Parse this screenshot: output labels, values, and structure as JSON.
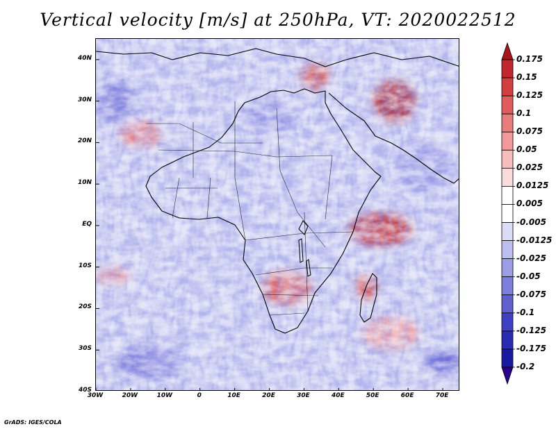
{
  "title": "Vertical velocity [m/s] at 250hPa, VT: 2020022512",
  "credit": "GrADS: IGES/COLA",
  "lat_labels": [
    "40N",
    "30N",
    "20N",
    "10N",
    "EQ",
    "10S",
    "20S",
    "30S",
    "40S"
  ],
  "lon_labels": [
    "30W",
    "20W",
    "10W",
    "0",
    "10E",
    "20E",
    "30E",
    "40E",
    "50E",
    "60E",
    "70E"
  ],
  "colorbar": {
    "labels": [
      "0.175",
      "0.15",
      "0.125",
      "0.1",
      "0.075",
      "0.05",
      "0.025",
      "0.0125",
      "0.005",
      "-0.005",
      "-0.0125",
      "-0.025",
      "-0.05",
      "-0.075",
      "-0.1",
      "-0.125",
      "-0.175",
      "-0.2"
    ],
    "colors": [
      "#a8141c",
      "#c1272d",
      "#d33f3f",
      "#e05c5c",
      "#ea7b7b",
      "#f29a9a",
      "#f7bcbc",
      "#fbdcdc",
      "#ffffff",
      "#ffffff",
      "#dcdcf6",
      "#bdbdf0",
      "#9d9de6",
      "#7e7edc",
      "#5f5fd0",
      "#4040c4",
      "#2a2ab2",
      "#1a1aa0",
      "#2a008f"
    ]
  },
  "map": {
    "extent": {
      "lon_min": -30,
      "lon_max": 75,
      "lat_min": -40,
      "lat_max": 45
    },
    "features": [
      {
        "name": "red-patch-east-africa-indian-ocean",
        "lon": 52,
        "lat": -1,
        "rx": 9,
        "ry": 4,
        "color": "#c1272d"
      },
      {
        "name": "red-patch-iran",
        "lon": 56,
        "lat": 30,
        "rx": 6,
        "ry": 5,
        "color": "#b01c24"
      },
      {
        "name": "red-patch-madagascar",
        "lon": 48,
        "lat": -15,
        "rx": 3,
        "ry": 3,
        "color": "#d33f3f"
      },
      {
        "name": "red-patch-southern-africa",
        "lon": 25,
        "lat": -15,
        "rx": 7,
        "ry": 4,
        "color": "#e05c5c"
      },
      {
        "name": "red-patch-east-mediterranean",
        "lon": 33,
        "lat": 36,
        "rx": 4,
        "ry": 3,
        "color": "#d33f3f"
      },
      {
        "name": "red-patch-sahara-west",
        "lon": -17,
        "lat": 22,
        "rx": 6,
        "ry": 3,
        "color": "#ea7b7b"
      },
      {
        "name": "red-patch-south-atlantic",
        "lon": -25,
        "lat": -12,
        "rx": 5,
        "ry": 2,
        "color": "#f29a9a"
      },
      {
        "name": "red-patch-south-indian",
        "lon": 55,
        "lat": -26,
        "rx": 8,
        "ry": 4,
        "color": "#f29a9a"
      },
      {
        "name": "blue-patch-north-atlantic",
        "lon": -24,
        "lat": 30,
        "rx": 6,
        "ry": 5,
        "color": "#7e7edc"
      },
      {
        "name": "blue-patch-south-atlantic",
        "lon": -15,
        "lat": -33,
        "rx": 10,
        "ry": 4,
        "color": "#7e7edc"
      },
      {
        "name": "blue-patch-sahara",
        "lon": 20,
        "lat": 26,
        "rx": 8,
        "ry": 4,
        "color": "#9d9de6"
      },
      {
        "name": "blue-patch-arabian-sea",
        "lon": 64,
        "lat": 14,
        "rx": 8,
        "ry": 6,
        "color": "#9d9de6"
      },
      {
        "name": "blue-patch-south-indian",
        "lon": 70,
        "lat": -33,
        "rx": 5,
        "ry": 3,
        "color": "#5f5fd0"
      }
    ]
  }
}
